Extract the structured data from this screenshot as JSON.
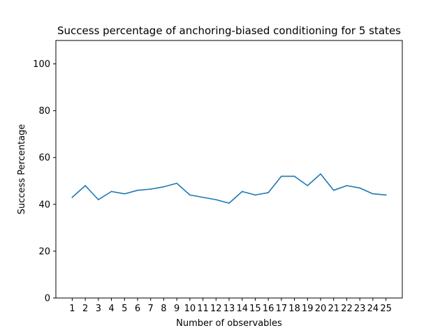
{
  "chart_data": {
    "type": "line",
    "title": "Success percentage of anchoring-biased conditioning for 5 states",
    "xlabel": "Number of observables",
    "ylabel": "Success Percentage",
    "x": [
      1,
      2,
      3,
      4,
      5,
      6,
      7,
      8,
      9,
      10,
      11,
      12,
      13,
      14,
      15,
      16,
      17,
      18,
      19,
      20,
      21,
      22,
      23,
      24,
      25
    ],
    "x_tick_labels": [
      "1",
      "2",
      "3",
      "4",
      "5",
      "6",
      "7",
      "8",
      "9",
      "10",
      "11",
      "12",
      "13",
      "14",
      "15",
      "16",
      "17",
      "18",
      "19",
      "20",
      "21",
      "22",
      "23",
      "24",
      "25"
    ],
    "series": [
      {
        "values": [
          43,
          48,
          42,
          45.5,
          44.5,
          46,
          46.5,
          47.5,
          49,
          44,
          43,
          42,
          40.5,
          45.5,
          44,
          45,
          52,
          52,
          48,
          53,
          46,
          48,
          47,
          44.5,
          44
        ],
        "color": "#1f77b4"
      }
    ],
    "xlim": [
      -0.25,
      26.25
    ],
    "ylim": [
      0,
      110
    ],
    "y_ticks": [
      0,
      20,
      40,
      60,
      80,
      100
    ],
    "y_tick_labels": [
      "0",
      "20",
      "40",
      "60",
      "80",
      "100"
    ],
    "grid": false,
    "legend": "none"
  }
}
